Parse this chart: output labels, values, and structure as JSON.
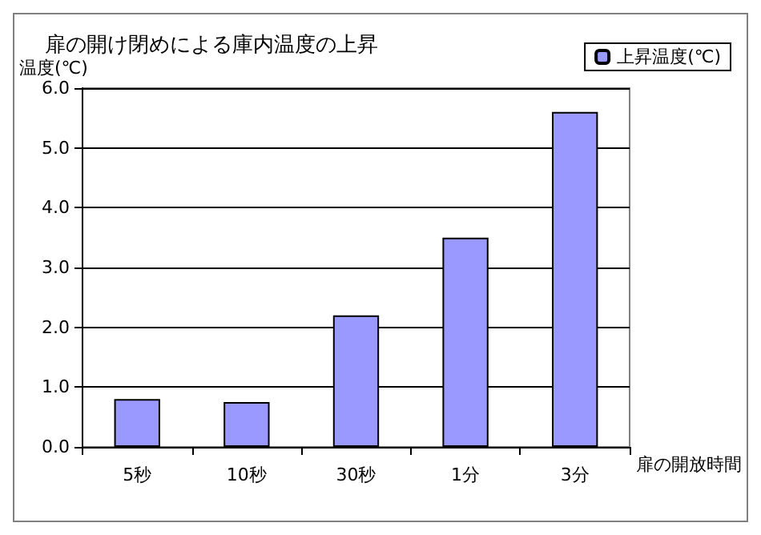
{
  "chart_data": {
    "type": "bar",
    "title": "扉の開け閉めによる庫内温度の上昇",
    "ylabel": "温度(℃)",
    "xlabel": "扉の開放時間",
    "categories": [
      "5秒",
      "10秒",
      "30秒",
      "1分",
      "3分"
    ],
    "series": [
      {
        "name": "上昇温度(℃)",
        "color": "#9999ff",
        "values": [
          0.8,
          0.75,
          2.2,
          3.5,
          5.6
        ]
      }
    ],
    "ylim": [
      0,
      6
    ],
    "yticks": [
      {
        "value": 0,
        "label": "0.0"
      },
      {
        "value": 1,
        "label": "1.0"
      },
      {
        "value": 2,
        "label": "2.0"
      },
      {
        "value": 3,
        "label": "3.0"
      },
      {
        "value": 4,
        "label": "4.0"
      },
      {
        "value": 5,
        "label": "5.0"
      },
      {
        "value": 6,
        "label": "6.0"
      }
    ],
    "grid": "y",
    "legend": "top right"
  }
}
